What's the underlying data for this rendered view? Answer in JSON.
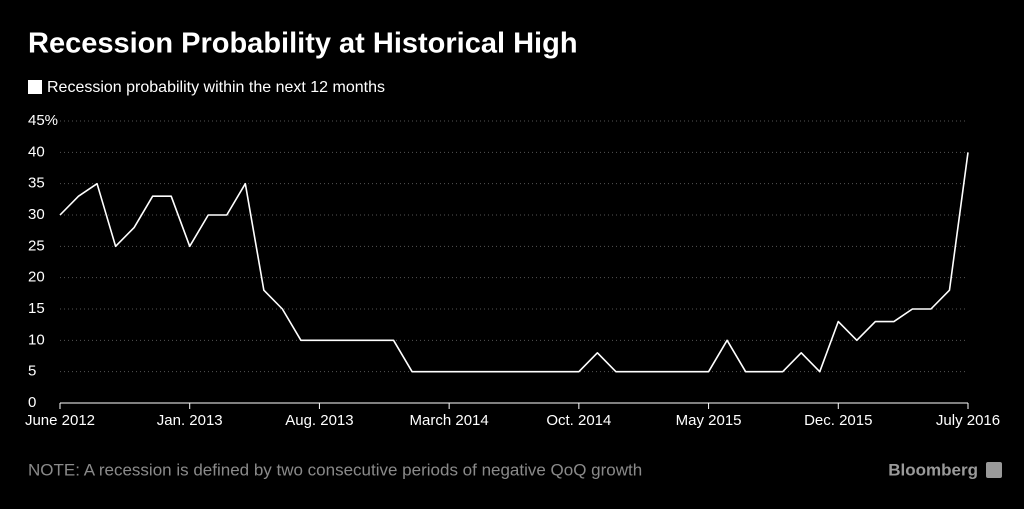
{
  "chart_data": {
    "type": "line",
    "title": "Recession Probability at Historical High",
    "note": "NOTE: A recession is defined by two consecutive periods of negative QoQ growth",
    "source": "Bloomberg",
    "categories": [
      "June 2012",
      null,
      null,
      null,
      null,
      null,
      null,
      "Jan. 2013",
      null,
      null,
      null,
      null,
      null,
      null,
      "Aug. 2013",
      null,
      null,
      null,
      null,
      null,
      null,
      "March 2014",
      null,
      null,
      null,
      null,
      null,
      null,
      "Oct. 2014",
      null,
      null,
      null,
      null,
      null,
      null,
      "May 2015",
      null,
      null,
      null,
      null,
      null,
      null,
      "Dec. 2015",
      null,
      null,
      null,
      null,
      null,
      null,
      "July 2016"
    ],
    "series": [
      {
        "name": "Recession probability within the next 12 months",
        "color": "#ffffff",
        "values": [
          30,
          33,
          35,
          25,
          28,
          33,
          33,
          25,
          30,
          30,
          35,
          18,
          15,
          10,
          10,
          10,
          10,
          10,
          10,
          5,
          5,
          5,
          5,
          5,
          5,
          5,
          5,
          5,
          5,
          8,
          5,
          5,
          5,
          5,
          5,
          5,
          10,
          5,
          5,
          5,
          8,
          5,
          13,
          10,
          13,
          13,
          15,
          15,
          18,
          40
        ]
      }
    ],
    "ylim": [
      0,
      45
    ],
    "yticks": [
      0,
      5,
      10,
      15,
      20,
      25,
      30,
      35,
      40,
      {
        "value": 45,
        "label": "45%"
      }
    ],
    "grid": true
  }
}
